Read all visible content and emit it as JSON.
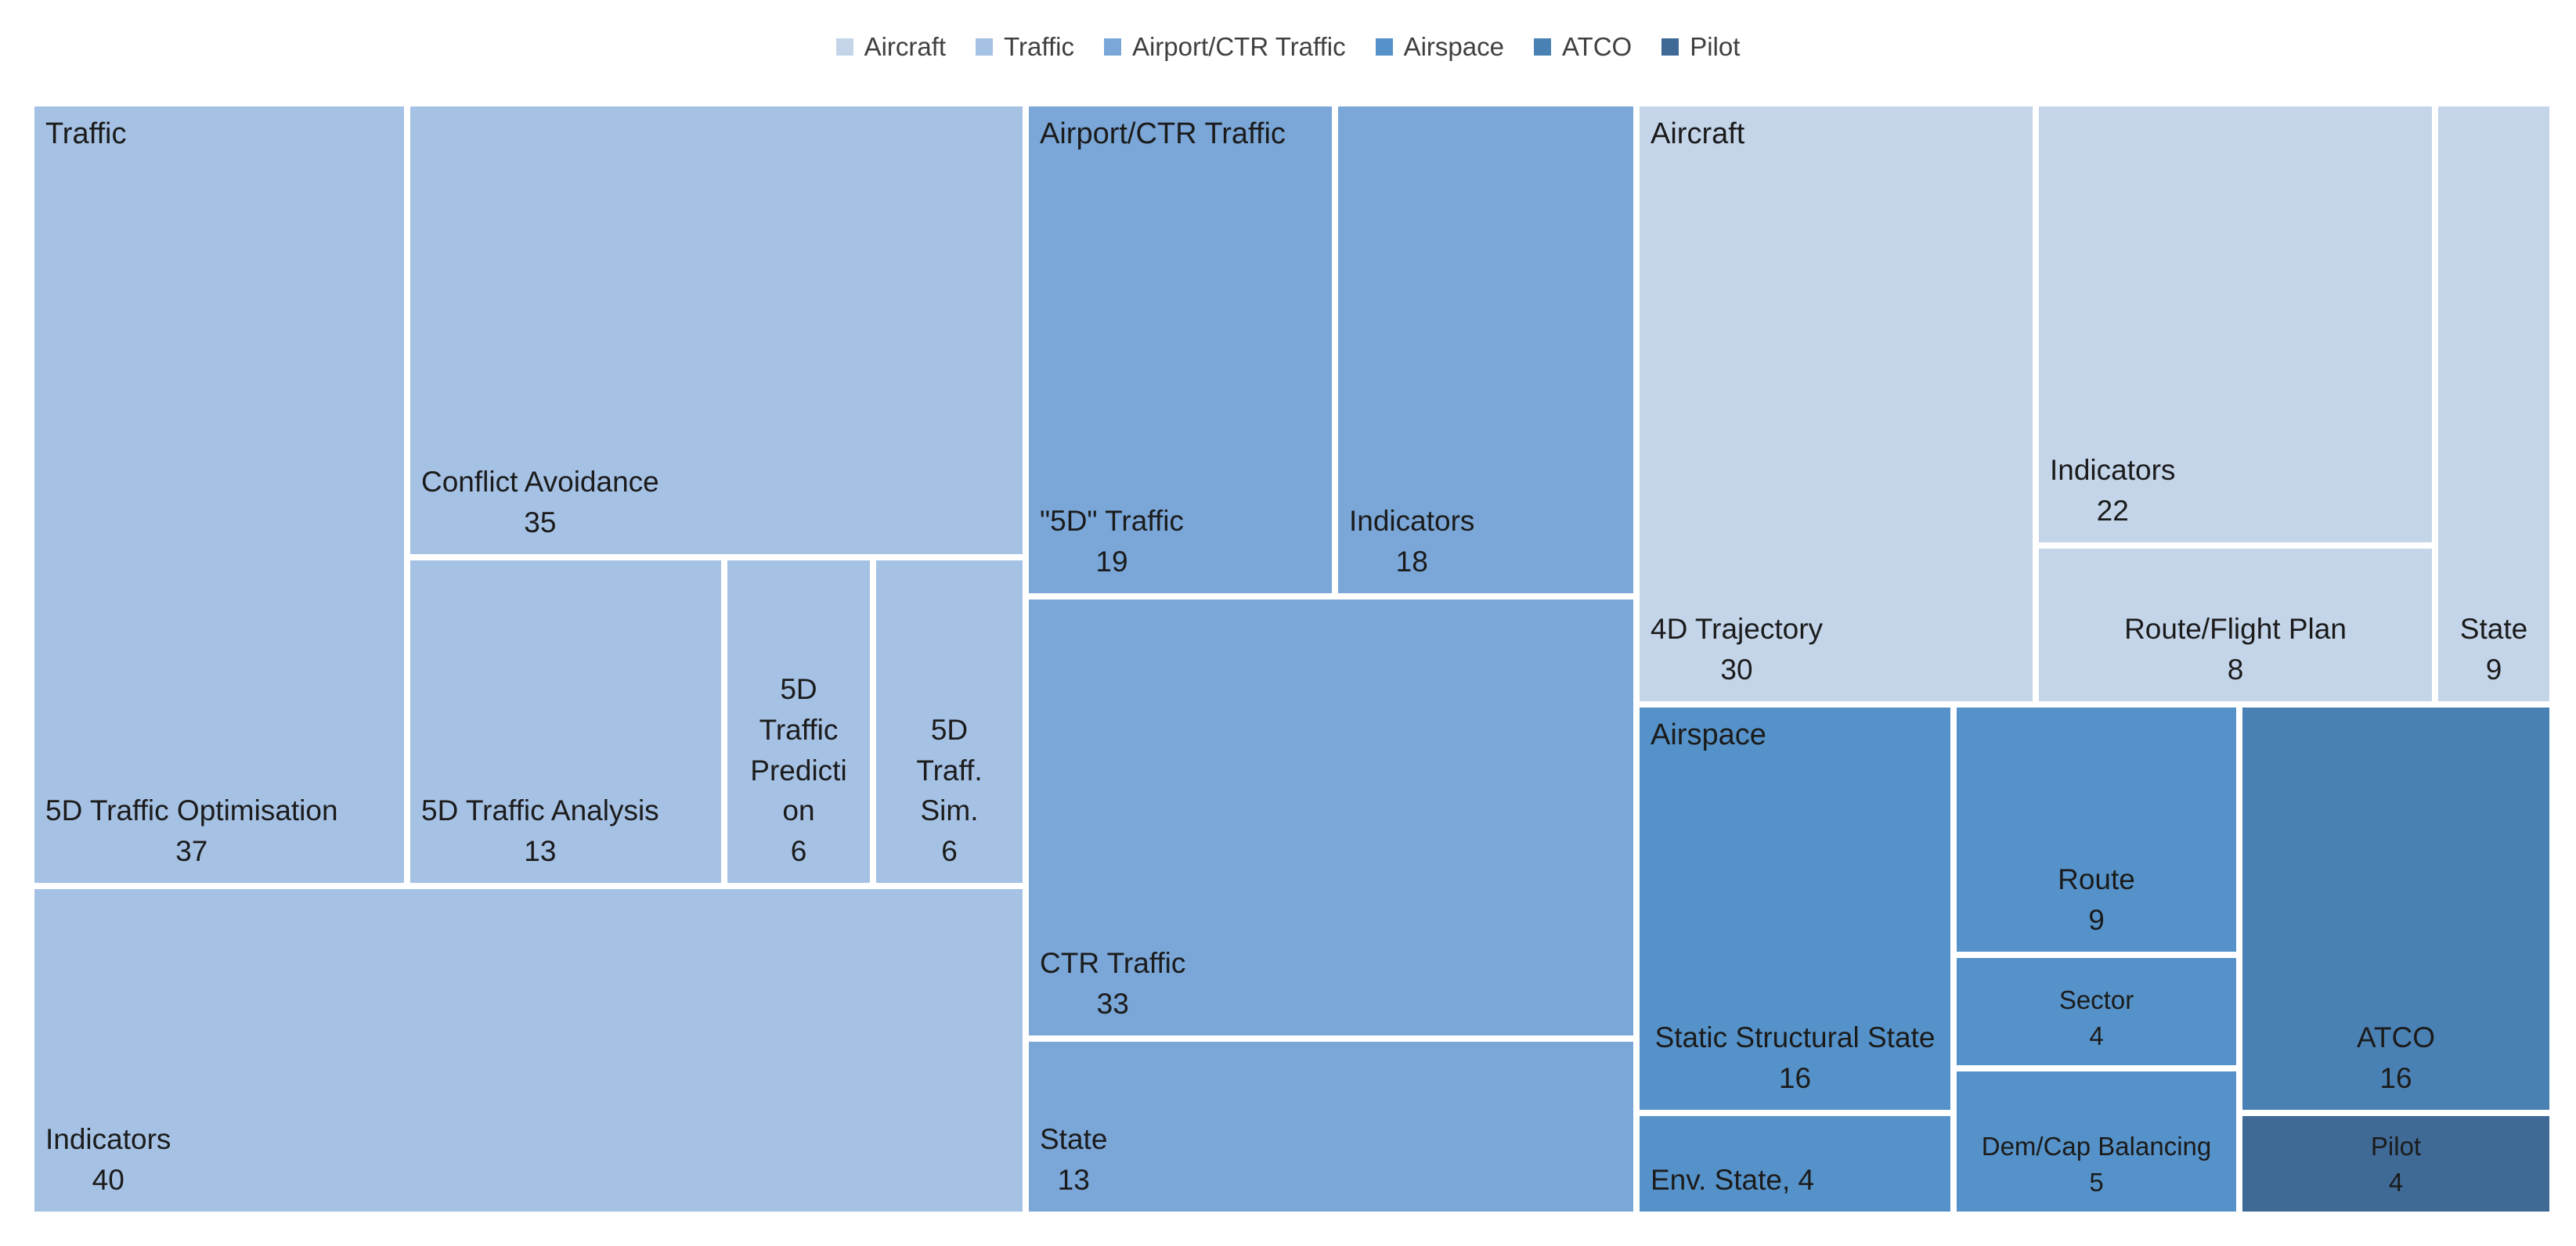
{
  "chart_data": {
    "type": "treemap",
    "title": "",
    "legend": [
      {
        "name": "Aircraft",
        "color": "#c4d5ea"
      },
      {
        "name": "Traffic",
        "color": "#a5c1e4"
      },
      {
        "name": "Airport/CTR Traffic",
        "color": "#7aa7d8"
      },
      {
        "name": "Airspace",
        "color": "#5592c9"
      },
      {
        "name": "ATCO",
        "color": "#4a81b4"
      },
      {
        "name": "Pilot",
        "color": "#3f6a96"
      }
    ],
    "groups": [
      {
        "name": "Traffic",
        "color": "#a5c1e4",
        "items": [
          {
            "name": "5D Traffic Optimisation",
            "value": 37
          },
          {
            "name": "Conflict  Avoidance",
            "value": 35
          },
          {
            "name": "5D Traffic Analysis",
            "value": 13
          },
          {
            "name": "5D\nTraffic\nPredicti\non",
            "value": 6
          },
          {
            "name": "5D\nTraff.\nSim.",
            "value": 6
          },
          {
            "name": "Indicators",
            "value": 40
          }
        ]
      },
      {
        "name": "Airport/CTR Traffic",
        "color": "#7aa7d8",
        "items": [
          {
            "name": "\"5D\" Traffic",
            "value": 19
          },
          {
            "name": "Indicators",
            "value": 18
          },
          {
            "name": "CTR Traffic",
            "value": 33
          },
          {
            "name": "State",
            "value": 13
          }
        ]
      },
      {
        "name": "Aircraft",
        "color": "#c4d5ea",
        "items": [
          {
            "name": "4D Trajectory",
            "value": 30
          },
          {
            "name": "Indicators",
            "value": 22
          },
          {
            "name": "Route/Flight Plan",
            "value": 8
          },
          {
            "name": "State",
            "value": 9
          }
        ]
      },
      {
        "name": "Airspace",
        "color": "#5592c9",
        "items": [
          {
            "name": "Static Structural State",
            "value": 16
          },
          {
            "name": "Env. State, 4",
            "value": 4,
            "hide_value": true
          },
          {
            "name": "Route",
            "value": 9
          },
          {
            "name": "Sector",
            "value": 4
          },
          {
            "name": "Dem/Cap Balancing",
            "value": 5
          }
        ]
      },
      {
        "name": "ATCO",
        "color": "#4a81b4",
        "items": [
          {
            "name": "ATCO",
            "value": 16
          }
        ]
      },
      {
        "name": "Pilot",
        "color": "#3f6a96",
        "items": [
          {
            "name": "Pilot",
            "value": 4
          }
        ]
      }
    ]
  }
}
